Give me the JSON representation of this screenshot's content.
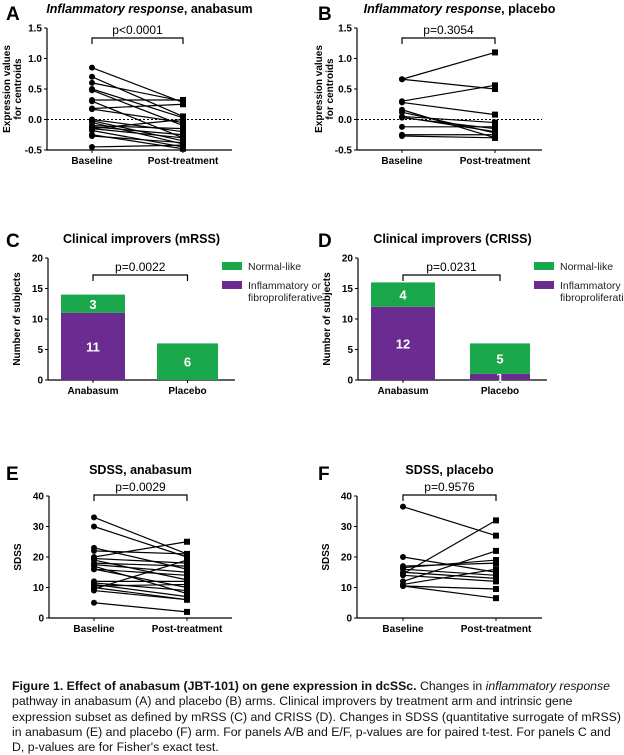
{
  "colors": {
    "normal_like": "#1aa64a",
    "inflammatory": "#6a2c91",
    "line": "#000000"
  },
  "caption": {
    "bold": "Figure 1. Effect of anabasum (JBT-101) on gene expression in dcSSc.",
    "part1": " Changes in ",
    "italic": "inflammatory response",
    "part2": " pathway in anabasum (A) and placebo (B) arms. Clinical improvers by treatment arm and intrinsic gene expression subset as defined by mRSS (C) and CRISS (D). Changes in SDSS (quantitative surrogate of mRSS) in anabasum (E) and placebo (F) arm. For panels A/B and E/F, p-values are for paired t-test. For panels C and D, p-values are for Fisher's exact test."
  },
  "chart_data": [
    {
      "panel": "A",
      "type": "line",
      "title_italic": "Inflammatory response",
      "title_rest": ", anabasum",
      "pvalue": "p<0.0001",
      "ylabel": [
        "Expression values",
        "for centroids"
      ],
      "categories": [
        "Baseline",
        "Post-treatment"
      ],
      "ylim": [
        -0.5,
        1.5
      ],
      "yticks": [
        "-0.5",
        "0.0",
        "0.5",
        "1.0",
        "1.5"
      ],
      "reference_line": 0,
      "pairs": [
        [
          0.85,
          0.28
        ],
        [
          0.7,
          0.05
        ],
        [
          0.6,
          0.3
        ],
        [
          0.5,
          0.03
        ],
        [
          0.48,
          -0.1
        ],
        [
          0.32,
          0.32
        ],
        [
          0.3,
          -0.3
        ],
        [
          0.18,
          0.25
        ],
        [
          0.17,
          -0.05
        ],
        [
          0.0,
          -0.2
        ],
        [
          -0.02,
          -0.35
        ],
        [
          -0.05,
          -0.4
        ],
        [
          -0.1,
          -0.15
        ],
        [
          -0.12,
          -0.25
        ],
        [
          -0.15,
          -0.3
        ],
        [
          -0.15,
          0.0
        ],
        [
          -0.18,
          -0.45
        ],
        [
          -0.25,
          -0.48
        ],
        [
          -0.27,
          -0.38
        ],
        [
          -0.45,
          -0.42
        ]
      ]
    },
    {
      "panel": "B",
      "type": "line",
      "title_italic": "Inflammatory response",
      "title_rest": ", placebo",
      "pvalue": "p=0.3054",
      "ylabel": [
        "Expression values",
        "for centroids"
      ],
      "categories": [
        "Baseline",
        "Post-treatment"
      ],
      "ylim": [
        -0.5,
        1.5
      ],
      "yticks": [
        "-0.5",
        "0.0",
        "0.5",
        "1.0",
        "1.5"
      ],
      "reference_line": 0,
      "pairs": [
        [
          0.66,
          1.1
        ],
        [
          0.66,
          0.5
        ],
        [
          0.3,
          0.56
        ],
        [
          0.28,
          0.08
        ],
        [
          0.16,
          -0.3
        ],
        [
          0.12,
          -0.22
        ],
        [
          0.05,
          -0.05
        ],
        [
          0.03,
          -0.15
        ],
        [
          -0.12,
          -0.12
        ],
        [
          -0.25,
          -0.25
        ],
        [
          -0.27,
          -0.3
        ],
        [
          0.04,
          -0.2
        ]
      ]
    },
    {
      "panel": "C",
      "type": "bar",
      "stacked": true,
      "title": "Clinical improvers (mRSS)",
      "pvalue": "p=0.0022",
      "ylabel": "Number of subjects",
      "categories": [
        "Anabasum",
        "Placebo"
      ],
      "ylim": [
        0,
        20
      ],
      "yticks": [
        "0",
        "5",
        "10",
        "15",
        "20"
      ],
      "series": [
        {
          "name": "Inflammatory or fibroproliferative",
          "values": [
            11,
            0
          ]
        },
        {
          "name": "Normal-like",
          "values": [
            3,
            6
          ]
        }
      ],
      "legend": [
        "Normal-like",
        "Inflammatory or",
        "fibroproliferative"
      ]
    },
    {
      "panel": "D",
      "type": "bar",
      "stacked": true,
      "title": "Clinical improvers (CRISS)",
      "pvalue": "p=0.0231",
      "ylabel": "Number of subjects",
      "categories": [
        "Anabasum",
        "Placebo"
      ],
      "ylim": [
        0,
        20
      ],
      "yticks": [
        "0",
        "5",
        "10",
        "15",
        "20"
      ],
      "series": [
        {
          "name": "Inflammatory or fibroproliferative",
          "values": [
            12,
            1
          ]
        },
        {
          "name": "Normal-like",
          "values": [
            4,
            5
          ]
        }
      ],
      "legend": [
        "Normal-like",
        "Inflammatory or",
        "fibroproliferative"
      ]
    },
    {
      "panel": "E",
      "type": "line",
      "title": "SDSS, anabasum",
      "pvalue": "p=0.0029",
      "ylabel": "SDSS",
      "categories": [
        "Baseline",
        "Post-treatment"
      ],
      "ylim": [
        0,
        40
      ],
      "yticks": [
        "0",
        "10",
        "20",
        "30",
        "40"
      ],
      "pairs": [
        [
          33,
          21
        ],
        [
          30,
          20
        ],
        [
          23,
          16
        ],
        [
          22,
          21
        ],
        [
          20,
          25
        ],
        [
          19.5,
          18
        ],
        [
          19,
          12.5
        ],
        [
          18,
          17
        ],
        [
          17.5,
          15
        ],
        [
          17,
          8
        ],
        [
          16,
          14
        ],
        [
          16,
          10
        ],
        [
          12,
          12
        ],
        [
          11.5,
          9
        ],
        [
          11,
          7
        ],
        [
          10.5,
          11
        ],
        [
          10,
          6
        ],
        [
          9.5,
          19
        ],
        [
          9,
          6
        ],
        [
          5,
          2
        ]
      ]
    },
    {
      "panel": "F",
      "type": "line",
      "title": "SDSS, placebo",
      "pvalue": "p=0.9576",
      "ylabel": "SDSS",
      "categories": [
        "Baseline",
        "Post-treatment"
      ],
      "ylim": [
        0,
        40
      ],
      "yticks": [
        "0",
        "10",
        "20",
        "30",
        "40"
      ],
      "pairs": [
        [
          36.5,
          27
        ],
        [
          20,
          15
        ],
        [
          17,
          18
        ],
        [
          16.5,
          19
        ],
        [
          16,
          14
        ],
        [
          15,
          13
        ],
        [
          14.5,
          32
        ],
        [
          14,
          12
        ],
        [
          12,
          22
        ],
        [
          11,
          16
        ],
        [
          10.5,
          9.5
        ],
        [
          10.5,
          6.5
        ]
      ]
    }
  ]
}
